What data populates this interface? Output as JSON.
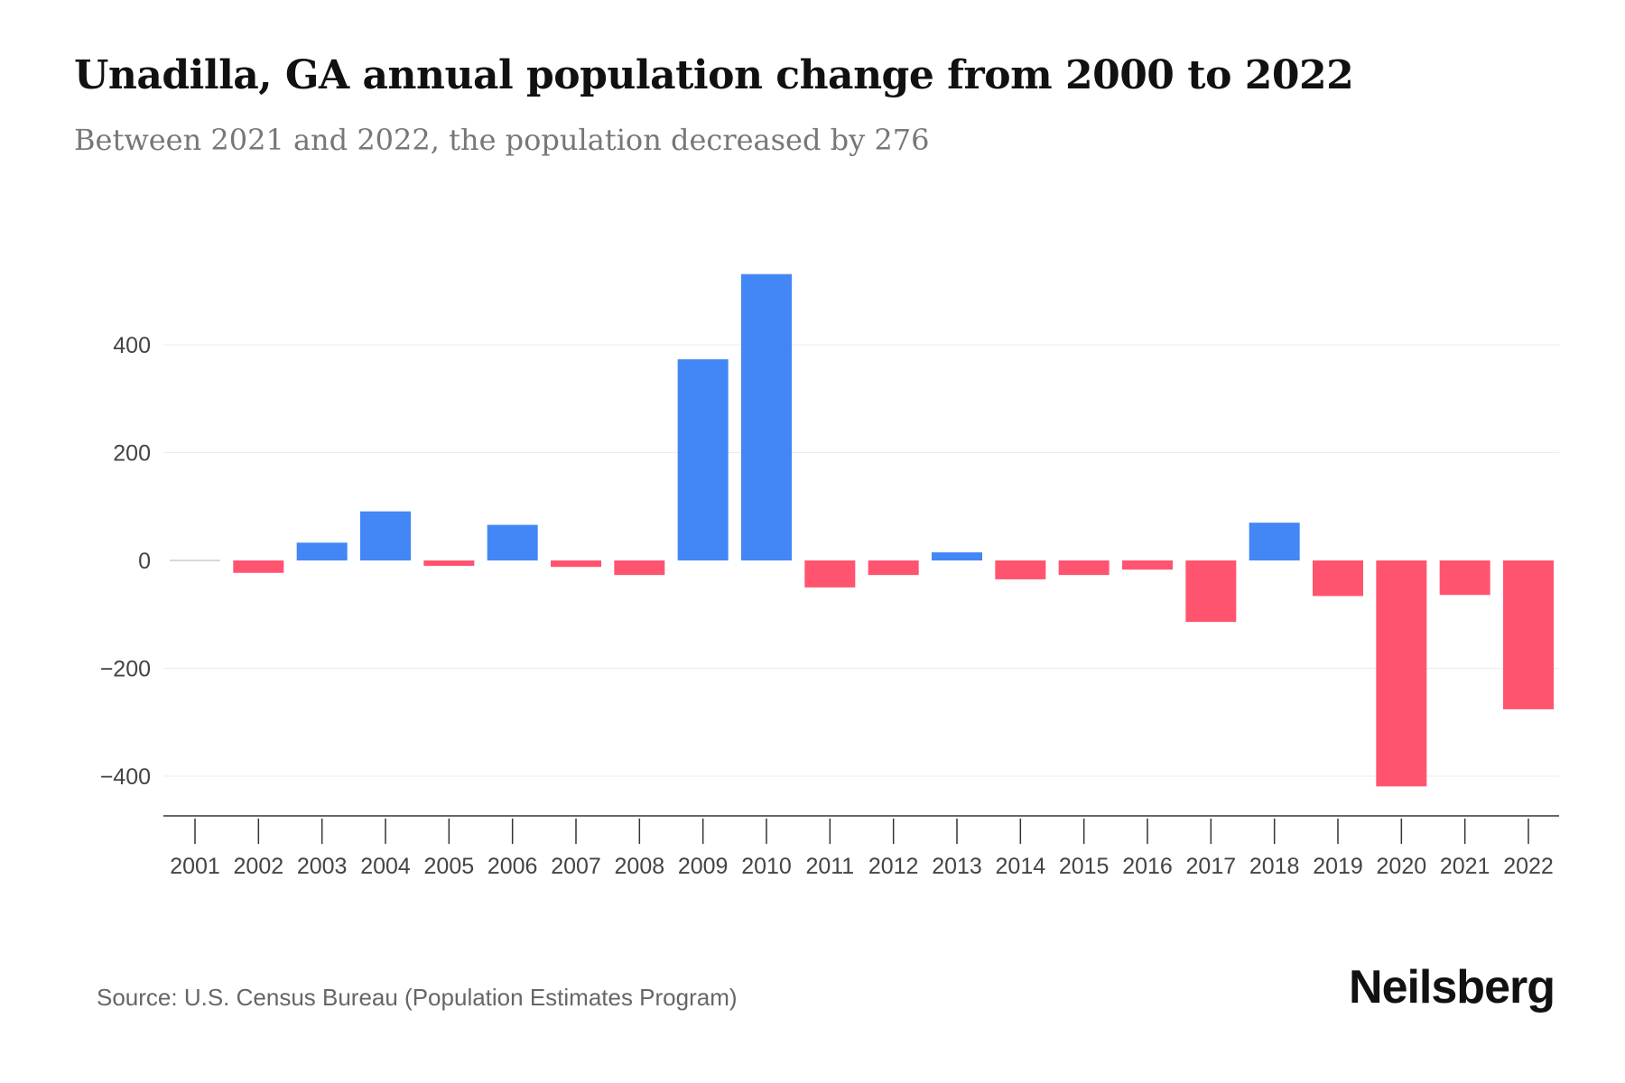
{
  "title": "Unadilla, GA annual population change from 2000 to 2022",
  "subtitle": "Between 2021 and 2022, the population decreased by 276",
  "source": "Source: U.S. Census Bureau (Population Estimates Program)",
  "logo": "Neilsberg",
  "colors": {
    "positive": "#4287F5",
    "negative": "#FF5470",
    "grid": "#EBEBEB",
    "axis": "#333333"
  },
  "chart_data": {
    "type": "bar",
    "title": "Unadilla, GA annual population change from 2000 to 2022",
    "xlabel": "",
    "ylabel": "",
    "ylim": [
      -470,
      560
    ],
    "yticks": [
      -400,
      -200,
      0,
      200,
      400
    ],
    "ytick_labels": [
      "−400",
      "−200",
      "0",
      "200",
      "400"
    ],
    "grid": true,
    "categories": [
      "2001",
      "2002",
      "2003",
      "2004",
      "2005",
      "2006",
      "2007",
      "2008",
      "2009",
      "2010",
      "2011",
      "2012",
      "2013",
      "2014",
      "2015",
      "2016",
      "2017",
      "2018",
      "2019",
      "2020",
      "2021",
      "2022"
    ],
    "values": [
      0,
      -23,
      33,
      91,
      -10,
      66,
      -12,
      -27,
      373,
      531,
      -50,
      -27,
      15,
      -35,
      -27,
      -17,
      -114,
      70,
      -66,
      -419,
      -64,
      -276
    ]
  }
}
